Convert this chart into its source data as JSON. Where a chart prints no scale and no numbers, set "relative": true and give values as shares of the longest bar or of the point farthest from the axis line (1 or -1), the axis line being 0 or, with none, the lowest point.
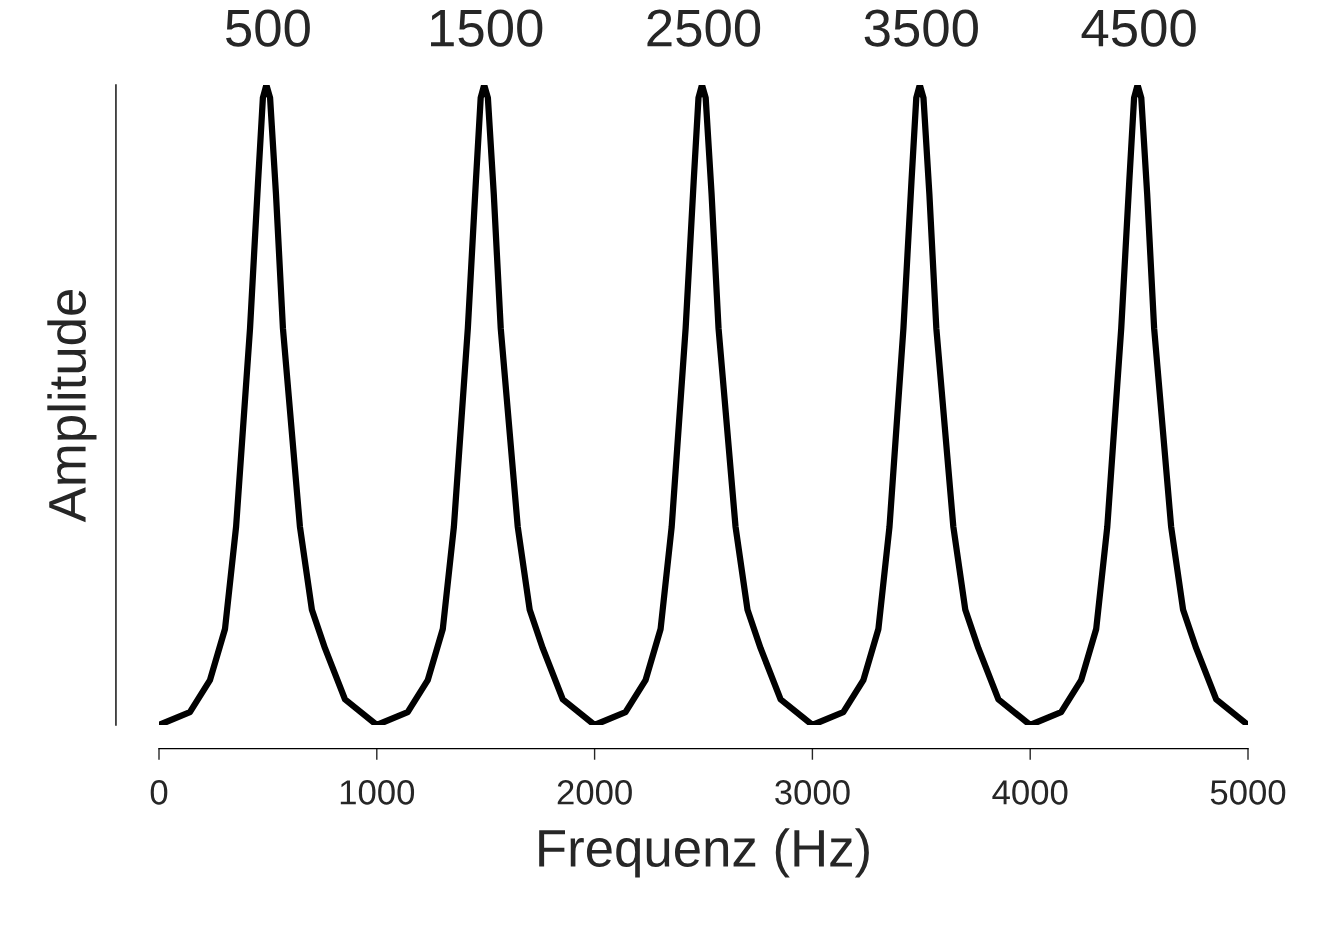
{
  "chart_data": {
    "type": "line",
    "relative": true,
    "xlabel": "Frequenz (Hz)",
    "ylabel": "Amplitude",
    "x": [
      0,
      142,
      234,
      303,
      354,
      418,
      455,
      477,
      493,
      510,
      537,
      569,
      647,
      702,
      762,
      854,
      1000,
      1142,
      1234,
      1303,
      1354,
      1418,
      1455,
      1477,
      1493,
      1510,
      1537,
      1569,
      1647,
      1702,
      1762,
      1854,
      2000,
      2142,
      2234,
      2303,
      2354,
      2418,
      2455,
      2477,
      2493,
      2510,
      2537,
      2569,
      2647,
      2702,
      2762,
      2854,
      3000,
      3142,
      3234,
      3303,
      3354,
      3418,
      3455,
      3477,
      3493,
      3510,
      3537,
      3569,
      3647,
      3702,
      3762,
      3854,
      4000,
      4142,
      4234,
      4303,
      4354,
      4418,
      4455,
      4477,
      4493,
      4510,
      4537,
      4569,
      4647,
      4702,
      4762,
      4854,
      5000
    ],
    "series": [
      {
        "color": "#000000",
        "values": [
          0,
          0.02,
          0.07,
          0.15,
          0.31,
          0.62,
          0.85,
          0.98,
          1,
          0.98,
          0.83,
          0.62,
          0.31,
          0.18,
          0.12,
          0.04,
          0,
          0.02,
          0.07,
          0.15,
          0.31,
          0.62,
          0.85,
          0.98,
          1,
          0.98,
          0.83,
          0.62,
          0.31,
          0.18,
          0.12,
          0.04,
          0,
          0.02,
          0.07,
          0.15,
          0.31,
          0.62,
          0.85,
          0.98,
          1,
          0.98,
          0.83,
          0.62,
          0.31,
          0.18,
          0.12,
          0.04,
          0,
          0.02,
          0.07,
          0.15,
          0.31,
          0.62,
          0.85,
          0.98,
          1,
          0.98,
          0.83,
          0.62,
          0.31,
          0.18,
          0.12,
          0.04,
          0,
          0.02,
          0.07,
          0.15,
          0.31,
          0.62,
          0.85,
          0.98,
          1,
          0.98,
          0.83,
          0.62,
          0.31,
          0.18,
          0.12,
          0.04,
          0
        ]
      }
    ],
    "xlim": [
      0,
      5000
    ],
    "xticks": [
      0,
      1000,
      2000,
      3000,
      4000,
      5000
    ],
    "tick_labels": "x",
    "grid": false,
    "legend": false,
    "annotations": [
      {
        "text": "500",
        "x": 500,
        "y": 1
      },
      {
        "text": "1500",
        "x": 1500,
        "y": 1
      },
      {
        "text": "2500",
        "x": 2500,
        "y": 1
      },
      {
        "text": "3500",
        "x": 3500,
        "y": 1
      },
      {
        "text": "4500",
        "x": 4500,
        "y": 1
      }
    ]
  }
}
